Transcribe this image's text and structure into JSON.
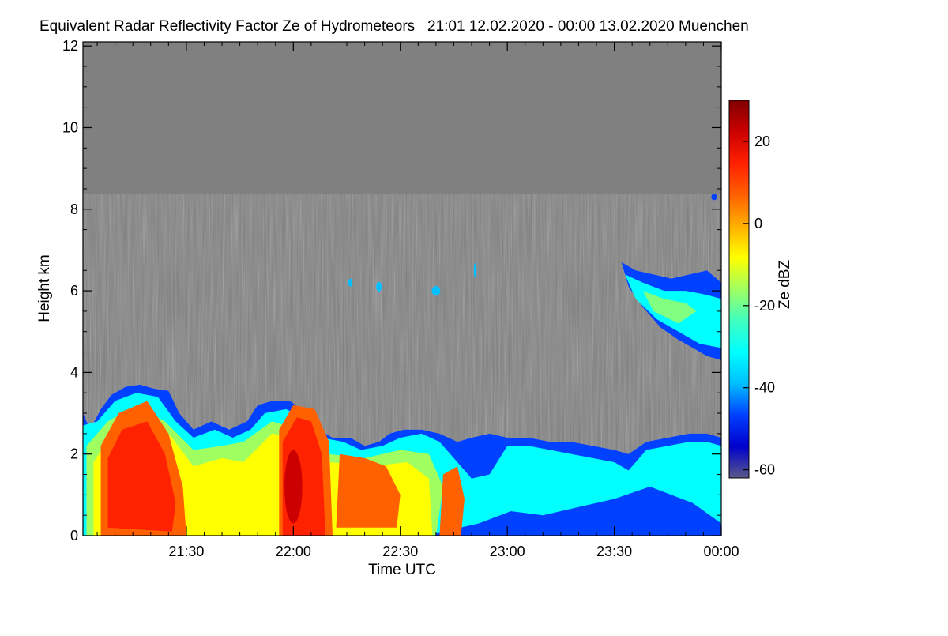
{
  "chart_data": {
    "type": "heatmap",
    "title": "Equivalent Radar Reflectivity Factor Ze of Hydrometeors   21:01 12.02.2020 - 00:00 13.02.2020 Muenchen",
    "xlabel": "Time UTC",
    "ylabel": "Height km",
    "colorbar_label": "Ze dBZ",
    "x_range_minutes": [
      1261,
      1440
    ],
    "x_ticks": [
      {
        "label": "21:30",
        "value": 1290
      },
      {
        "label": "22:00",
        "value": 1320
      },
      {
        "label": "22:30",
        "value": 1350
      },
      {
        "label": "23:00",
        "value": 1380
      },
      {
        "label": "23:30",
        "value": 1410
      },
      {
        "label": "00:00",
        "value": 1440
      }
    ],
    "y_range_km": [
      0,
      12.1
    ],
    "y_ticks": [
      {
        "label": "0",
        "value": 0
      },
      {
        "label": "2",
        "value": 2
      },
      {
        "label": "4",
        "value": 4
      },
      {
        "label": "6",
        "value": 6
      },
      {
        "label": "8",
        "value": 8
      },
      {
        "label": "10",
        "value": 10
      },
      {
        "label": "12",
        "value": 12
      }
    ],
    "colorbar_range_dbz": [
      -62,
      30
    ],
    "colorbar_ticks": [
      {
        "label": "20",
        "value": 20
      },
      {
        "label": "0",
        "value": 0
      },
      {
        "label": "-20",
        "value": -20
      },
      {
        "label": "-40",
        "value": -40
      },
      {
        "label": "-60",
        "value": -60
      }
    ],
    "background_color": "#808080",
    "colormap": [
      "#5a5a8a",
      "#0000cc",
      "#0040ff",
      "#00bfff",
      "#00ffff",
      "#40ffc0",
      "#a0ff60",
      "#ffff00",
      "#ffb000",
      "#ff6000",
      "#ff2000",
      "#cc0000",
      "#800000"
    ],
    "echo_regions": [
      {
        "desc": "low-level precipitation",
        "t_start": 1261,
        "t_end": 1440,
        "h_top_km": 2.5,
        "dbz_typical": -20
      },
      {
        "desc": "intense cell",
        "t_start": 1270,
        "t_end": 1288,
        "h_top_km": 3.6,
        "dbz_core": 20
      },
      {
        "desc": "intense cell",
        "t_start": 1317,
        "t_end": 1330,
        "h_top_km": 3.3,
        "dbz_core": 22
      },
      {
        "desc": "moderate cells",
        "t_start": 1330,
        "t_end": 1355,
        "h_top_km": 2.2,
        "dbz_core": 12
      },
      {
        "desc": "upper-level cloud",
        "t_start": 1415,
        "t_end": 1440,
        "h_bottom_km": 4.3,
        "h_top_km": 6.7,
        "dbz_typical": -25
      }
    ]
  }
}
